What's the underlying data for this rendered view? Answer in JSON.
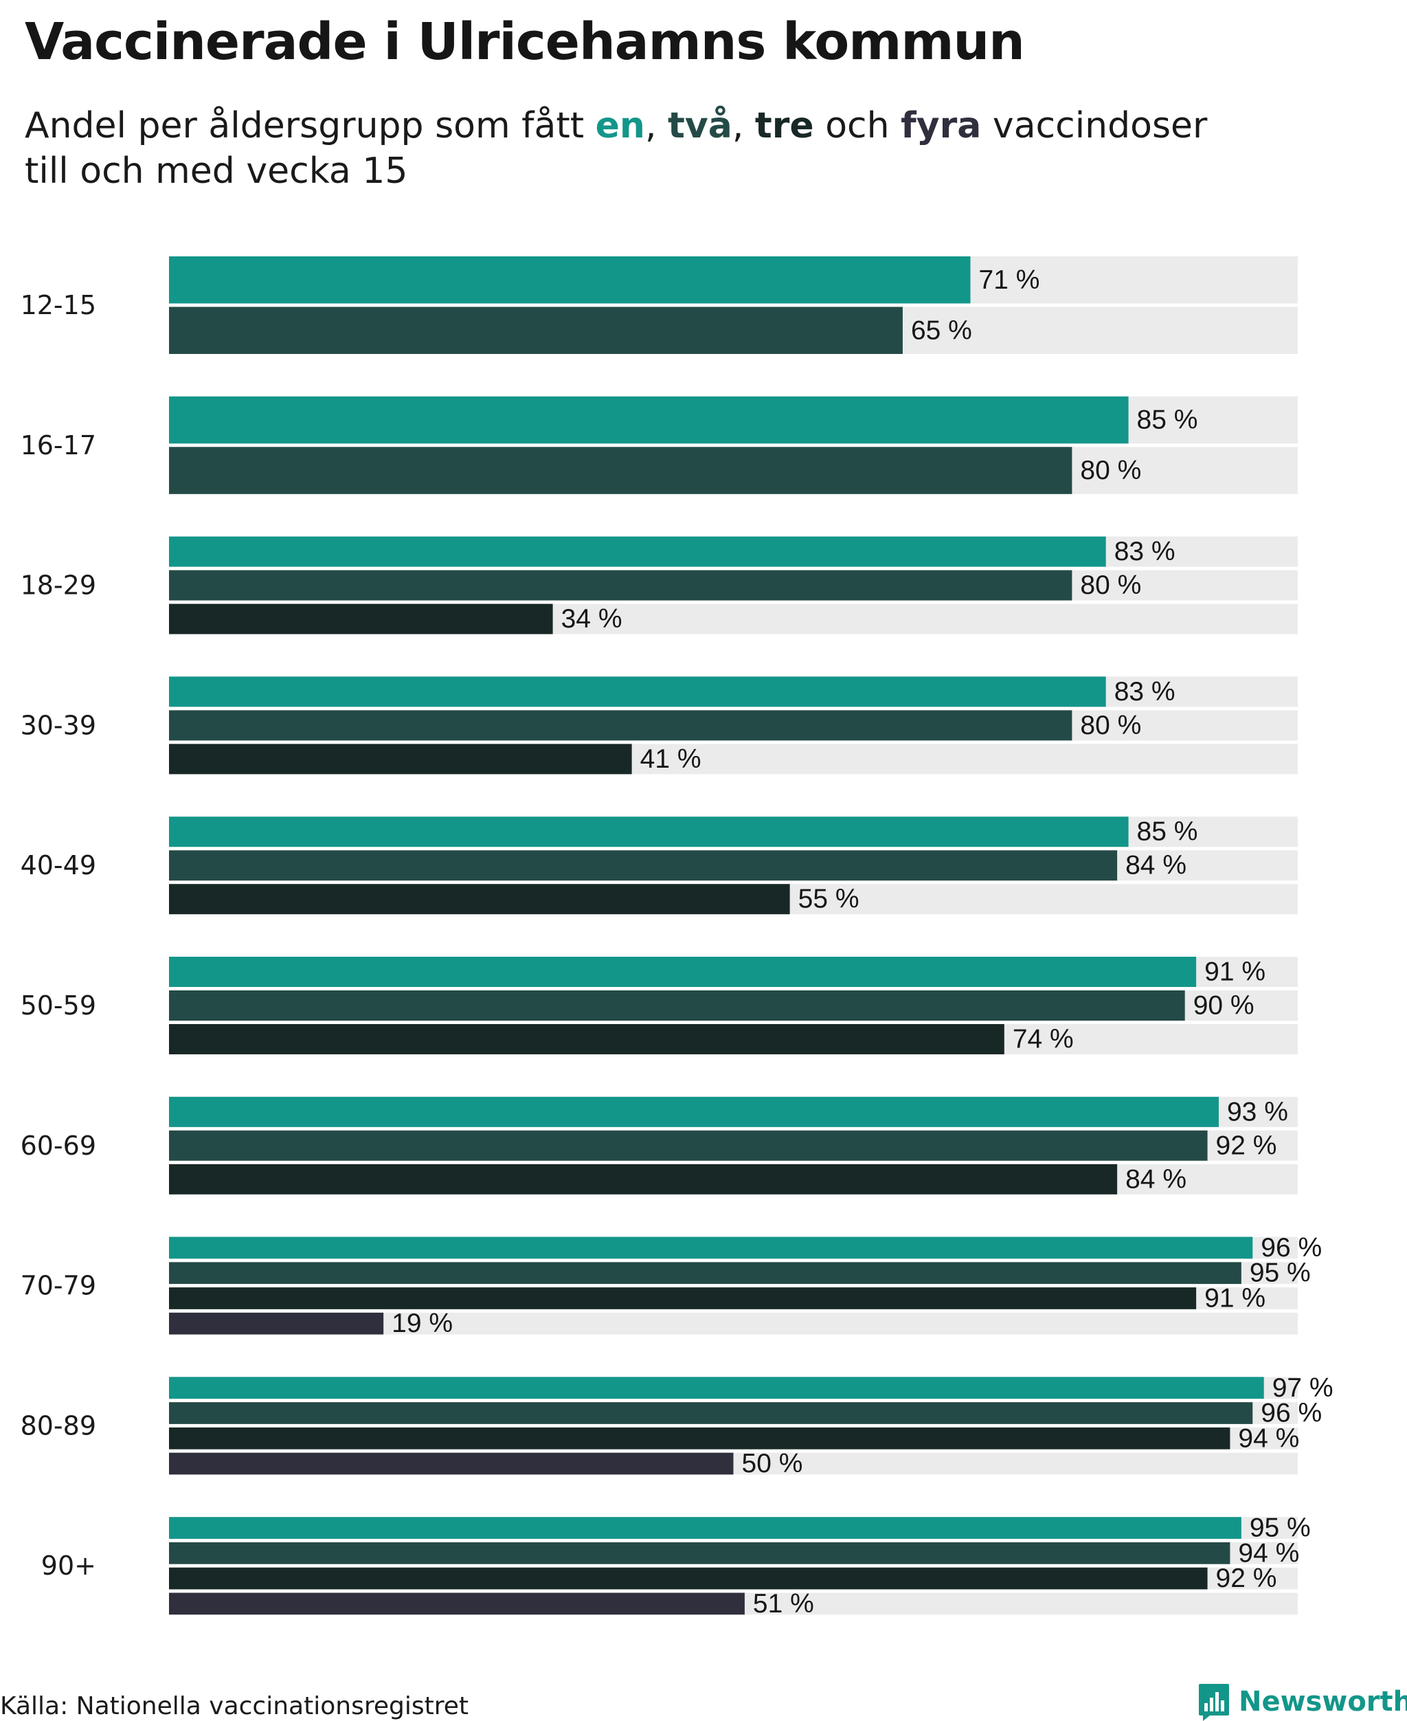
{
  "title": "Vaccinerade i Ulricehamns kommun",
  "subtitle": {
    "prefix": "Andel per åldersgrupp som fått ",
    "dose1": "en",
    "sep1": ", ",
    "dose2": "två",
    "sep2": ", ",
    "dose3": "tre",
    "conj": " och ",
    "dose4": "fyra",
    "suffix": " vaccindoser",
    "line2": "till och med vecka 15"
  },
  "colors": {
    "dose1": "#13968a",
    "dose2": "#244a47",
    "dose3": "#182826",
    "dose4": "#2f2f3e",
    "track": "#ebebeb"
  },
  "chart_data": {
    "type": "bar",
    "orientation": "horizontal",
    "title": "Vaccinerade i Ulricehamns kommun",
    "subtitle": "Andel per åldersgrupp som fått en, två, tre och fyra vaccindoser till och med vecka 15",
    "xlim": [
      0,
      100
    ],
    "value_suffix": " %",
    "categories": [
      "12-15",
      "16-17",
      "18-29",
      "30-39",
      "40-49",
      "50-59",
      "60-69",
      "70-79",
      "80-89",
      "90+"
    ],
    "series": [
      {
        "name": "en",
        "values": [
          71,
          85,
          83,
          83,
          85,
          91,
          93,
          96,
          97,
          95
        ]
      },
      {
        "name": "två",
        "values": [
          65,
          80,
          80,
          80,
          84,
          90,
          92,
          95,
          96,
          94
        ]
      },
      {
        "name": "tre",
        "values": [
          null,
          null,
          34,
          41,
          55,
          74,
          84,
          91,
          94,
          92
        ]
      },
      {
        "name": "fyra",
        "values": [
          null,
          null,
          null,
          null,
          null,
          null,
          null,
          19,
          50,
          51
        ]
      }
    ]
  },
  "footer": {
    "source": "Källa: Nationella vaccinationsregistret",
    "brand": "Newsworthy"
  }
}
